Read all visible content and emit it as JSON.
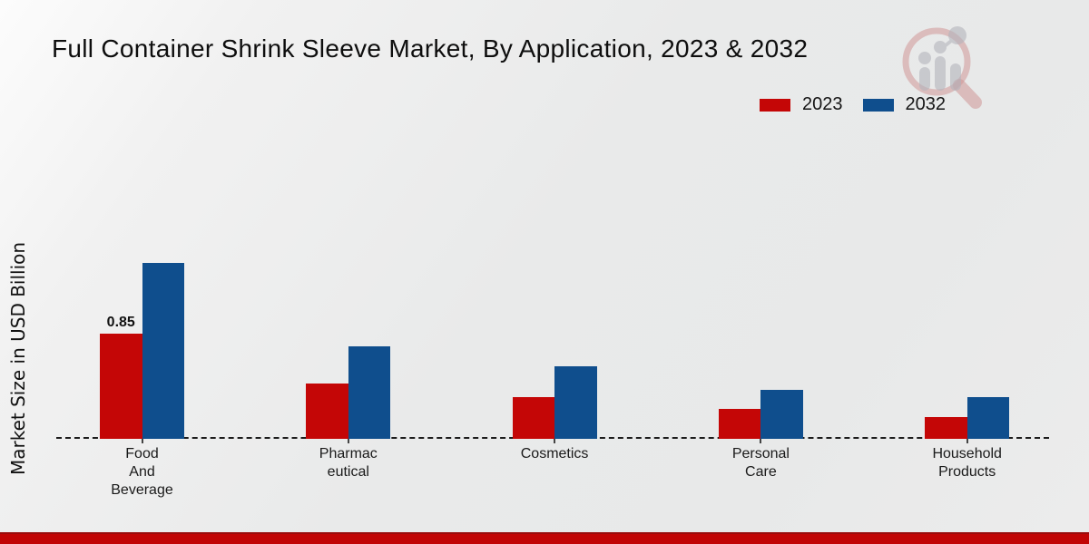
{
  "chart_data": {
    "type": "bar",
    "title": "Full Container Shrink Sleeve Market, By Application, 2023 & 2032",
    "ylabel": "Market Size in USD Billion",
    "xlabel": "",
    "categories": [
      "Food And Beverage",
      "Pharmaceutical",
      "Cosmetics",
      "Personal Care",
      "Household Products"
    ],
    "category_label_lines": [
      [
        "Food",
        "And",
        "Beverage"
      ],
      [
        "Pharmac",
        "eutical"
      ],
      [
        "Cosmetics"
      ],
      [
        "Personal",
        "Care"
      ],
      [
        "Household",
        "Products"
      ]
    ],
    "series": [
      {
        "name": "2023",
        "color": "#c40606",
        "values": [
          0.85,
          0.45,
          0.34,
          0.24,
          0.18
        ]
      },
      {
        "name": "2032",
        "color": "#0f4e8d",
        "values": [
          1.43,
          0.75,
          0.59,
          0.4,
          0.34
        ]
      }
    ],
    "data_labels": [
      {
        "series": "2023",
        "category": "Food And Beverage",
        "text": "0.85"
      }
    ],
    "legend_position": "top-right",
    "legend_entries": [
      "2023",
      "2032"
    ],
    "grid": false,
    "baseline_style": "dashed",
    "ylim": [
      0,
      1.6
    ]
  },
  "watermark": {
    "name": "market-research-magnifier-logo"
  },
  "footer": {
    "accent_color": "#c10505"
  }
}
